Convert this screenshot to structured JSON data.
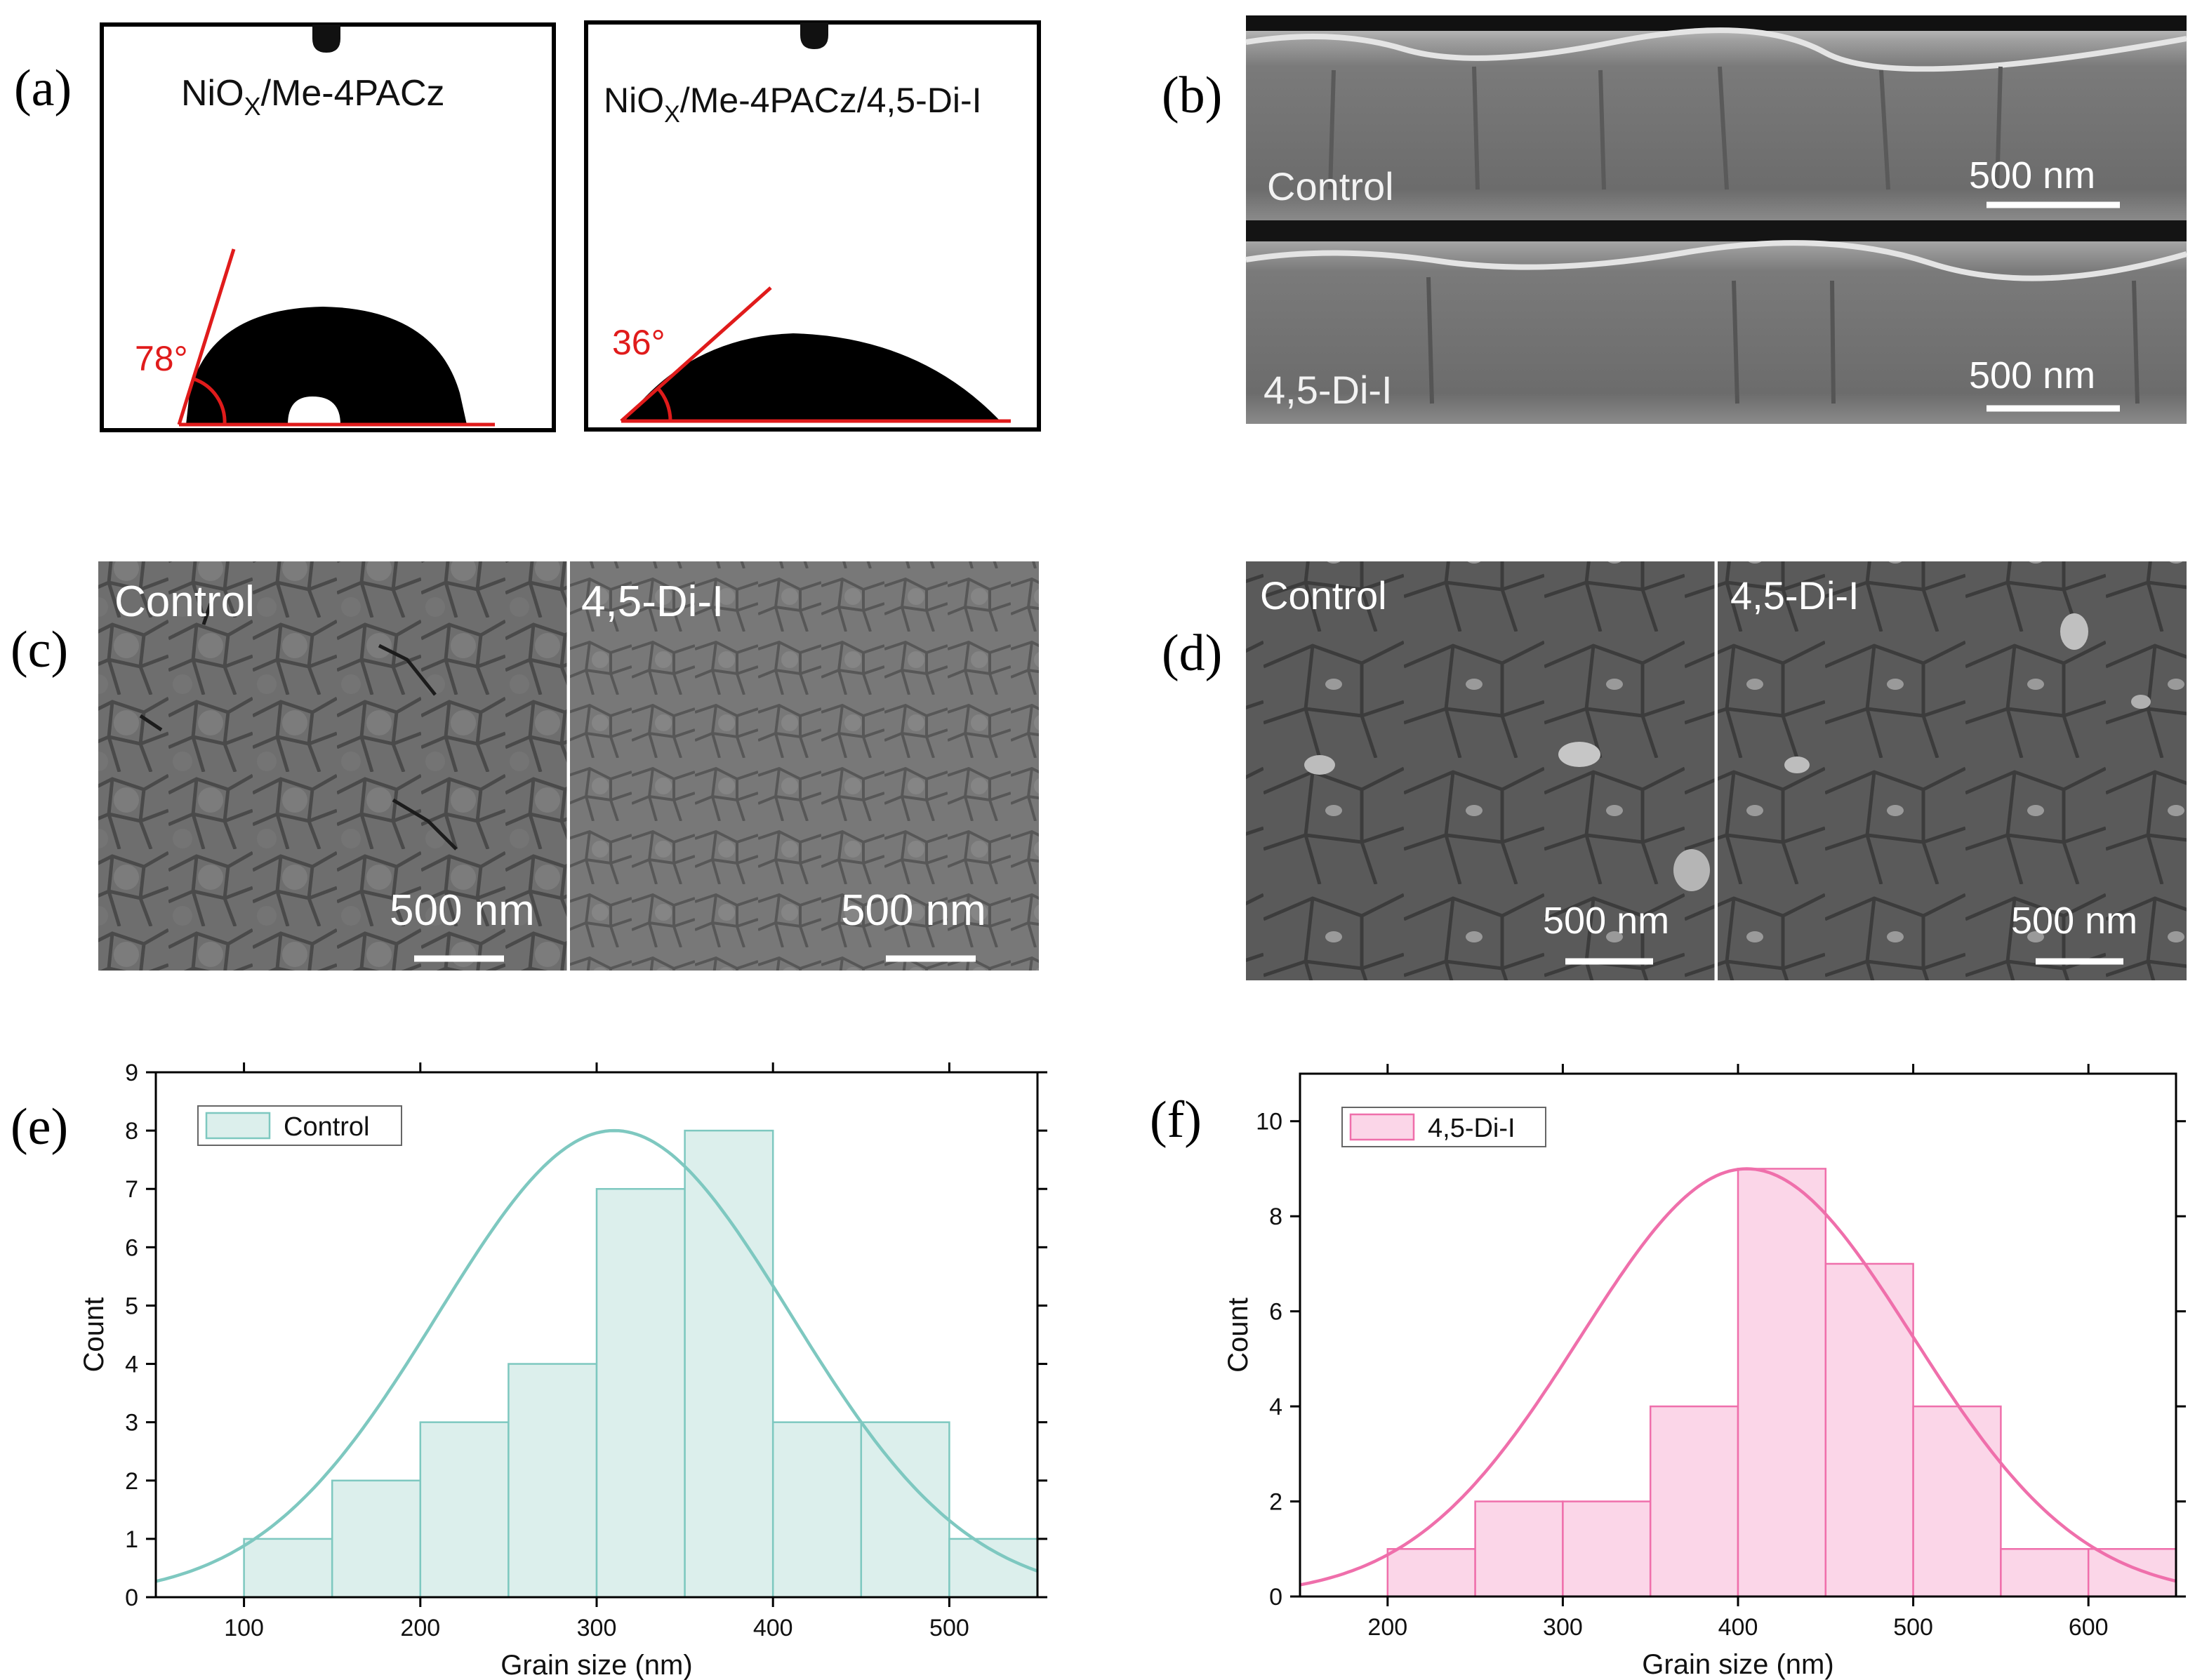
{
  "panels": {
    "a": {
      "label": "(a)",
      "left_title": "NiO",
      "left_sub": "X",
      "left_rest": "/Me-4PACz",
      "right_title": "NiO",
      "right_sub": "X",
      "right_rest": "/Me-4PACz/4,5-Di-I",
      "left_angle": "78°",
      "right_angle": "36°"
    },
    "b": {
      "label": "(b)",
      "top_tag": "Control",
      "bottom_tag": "4,5-Di-I",
      "scale": "500 nm"
    },
    "c": {
      "label": "(c)",
      "left_tag": "Control",
      "right_tag": "4,5-Di-I",
      "scale": "500 nm"
    },
    "d": {
      "label": "(d)",
      "left_tag": "Control",
      "right_tag": "4,5-Di-I",
      "scale": "500 nm"
    },
    "e": {
      "label": "(e)"
    },
    "f": {
      "label": "(f)"
    }
  },
  "colors": {
    "angle_red": "#e01b1b",
    "control_fill": "#dcefec",
    "control_line": "#7ec8c0",
    "dii_fill": "#fbd6e8",
    "dii_line": "#ef6fab",
    "sem_dark": "#3a3a3a"
  },
  "chart_data": [
    {
      "type": "bar",
      "panel": "e",
      "series_name": "Control",
      "xlabel": "Grain size (nm)",
      "ylabel": "Count",
      "xlim": [
        50,
        550
      ],
      "ylim": [
        0,
        9
      ],
      "xticks": [
        100,
        200,
        300,
        400,
        500
      ],
      "yticks": [
        0,
        1,
        2,
        3,
        4,
        5,
        6,
        7,
        8,
        9
      ],
      "bins": [
        [
          100,
          150,
          1
        ],
        [
          150,
          200,
          2
        ],
        [
          200,
          250,
          3
        ],
        [
          250,
          300,
          4
        ],
        [
          300,
          350,
          7
        ],
        [
          350,
          400,
          8
        ],
        [
          400,
          450,
          3
        ],
        [
          450,
          500,
          3
        ],
        [
          500,
          550,
          1
        ]
      ],
      "fit": {
        "type": "gaussian",
        "mean": 310,
        "sigma": 100,
        "peak": 8
      },
      "legend": "top-left"
    },
    {
      "type": "bar",
      "panel": "f",
      "series_name": "4,5-Di-I",
      "xlabel": "Grain size (nm)",
      "ylabel": "Count",
      "xlim": [
        150,
        650
      ],
      "ylim": [
        0,
        11
      ],
      "xticks": [
        200,
        300,
        400,
        500,
        600
      ],
      "yticks": [
        0,
        2,
        4,
        6,
        8,
        10
      ],
      "bins": [
        [
          200,
          250,
          1
        ],
        [
          250,
          300,
          2
        ],
        [
          300,
          350,
          2
        ],
        [
          350,
          400,
          4
        ],
        [
          400,
          450,
          9
        ],
        [
          450,
          500,
          7
        ],
        [
          500,
          550,
          4
        ],
        [
          550,
          600,
          1
        ],
        [
          600,
          650,
          1
        ]
      ],
      "fit": {
        "type": "gaussian",
        "mean": 405,
        "sigma": 95,
        "peak": 9
      },
      "legend": "top-left"
    }
  ]
}
